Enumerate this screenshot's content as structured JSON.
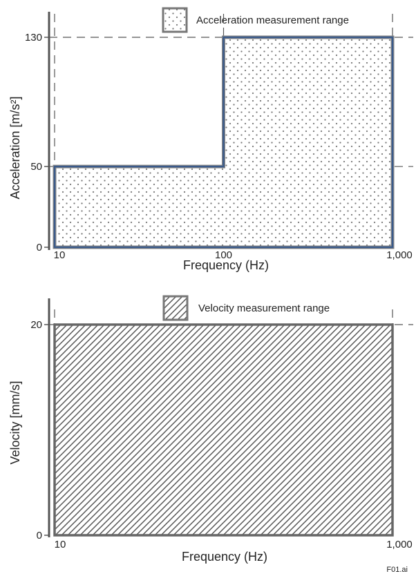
{
  "colors": {
    "axis": "#555555",
    "outline": "#3a5a8a",
    "dashed": "#555555",
    "text": "#222222"
  },
  "chart_data": [
    {
      "type": "area",
      "legend": "Acceleration measurement range",
      "legend_pattern": "dots",
      "xlabel": "Frequency (Hz)",
      "ylabel": "Acceleration [m/s²]",
      "x_scale": "log",
      "x_ticks": [
        {
          "value": 10,
          "label": "10"
        },
        {
          "value": 100,
          "label": "100"
        },
        {
          "value": 1000,
          "label": "1,000"
        }
      ],
      "y_ticks": [
        {
          "value": 0,
          "label": "0"
        },
        {
          "value": 50,
          "label": "50"
        },
        {
          "value": 130,
          "label": "130"
        }
      ],
      "series": [
        {
          "x": [
            10,
            100,
            100,
            1000
          ],
          "y": [
            50,
            50,
            130,
            130
          ]
        }
      ]
    },
    {
      "type": "area",
      "legend": "Velocity measurement range",
      "legend_pattern": "hatch",
      "xlabel": "Frequency (Hz)",
      "ylabel": "Velocity [mm/s]",
      "x_scale": "log",
      "x_ticks": [
        {
          "value": 10,
          "label": "10"
        },
        {
          "value": 1000,
          "label": "1,000"
        }
      ],
      "y_ticks": [
        {
          "value": 0,
          "label": "0"
        },
        {
          "value": 20,
          "label": "20"
        }
      ],
      "series": [
        {
          "x": [
            10,
            1000
          ],
          "y": [
            20,
            20
          ]
        }
      ]
    }
  ],
  "footer_note": "F01.ai"
}
